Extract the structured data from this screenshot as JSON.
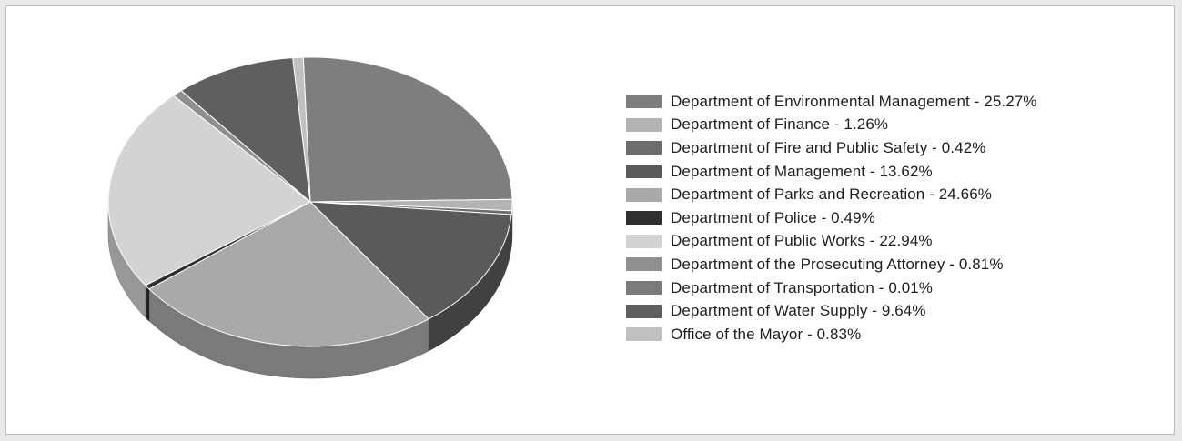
{
  "chart_data": {
    "type": "pie",
    "title": "",
    "legend_position": "right",
    "slices": [
      {
        "label": "Department of Environmental Management - 25.27%",
        "name": "Department of Environmental Management",
        "value": 25.27,
        "color": "#7e7e7e"
      },
      {
        "label": "Department of Finance - 1.26%",
        "name": "Department of Finance",
        "value": 1.26,
        "color": "#b3b3b3"
      },
      {
        "label": "Department of Fire and Public Safety - 0.42%",
        "name": "Department of Fire and Public Safety",
        "value": 0.42,
        "color": "#6c6c6c"
      },
      {
        "label": "Department of Management - 13.62%",
        "name": "Department of Management",
        "value": 13.62,
        "color": "#5a5a5a"
      },
      {
        "label": "Department of Parks and Recreation - 24.66%",
        "name": "Department of Parks and Recreation",
        "value": 24.66,
        "color": "#a9a9a9"
      },
      {
        "label": "Department of Police - 0.49%",
        "name": "Department of Police",
        "value": 0.49,
        "color": "#2f2f2f"
      },
      {
        "label": "Department of Public Works - 22.94%",
        "name": "Department of Public Works",
        "value": 22.94,
        "color": "#d3d3d3"
      },
      {
        "label": "Department of the Prosecuting Attorney - 0.81%",
        "name": "Department of the Prosecuting Attorney",
        "value": 0.81,
        "color": "#8f8f8f"
      },
      {
        "label": "Department of Transportation - 0.01%",
        "name": "Department of Transportation",
        "value": 0.01,
        "color": "#7a7a7a"
      },
      {
        "label": "Department of Water Supply - 9.64%",
        "name": "Department of Water Supply",
        "value": 9.64,
        "color": "#5f5f5f"
      },
      {
        "label": "Office of the Mayor - 0.83%",
        "name": "Office of the Mayor",
        "value": 0.83,
        "color": "#c0c0c0"
      }
    ]
  }
}
